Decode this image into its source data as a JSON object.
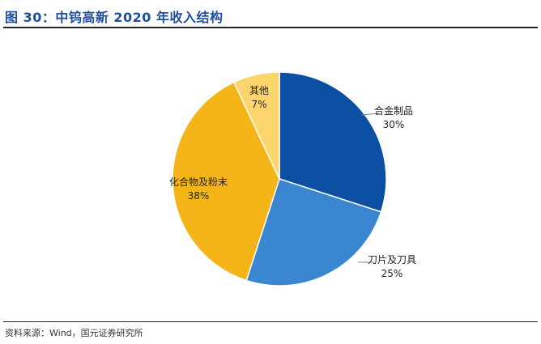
{
  "header": {
    "title": "图 30：中钨高新 2020 年收入结构"
  },
  "footer": {
    "source": "资料来源：Wind，国元证券研究所"
  },
  "chart_data": {
    "type": "pie",
    "title": "图 30：中钨高新 2020 年收入结构",
    "slices": [
      {
        "name": "合金制品",
        "value": 30,
        "label": "30%",
        "color": "#0b4fa3"
      },
      {
        "name": "刀片及刀具",
        "value": 25,
        "label": "25%",
        "color": "#3a86d1"
      },
      {
        "name": "化合物及粉末",
        "value": 38,
        "label": "38%",
        "color": "#f5b418"
      },
      {
        "name": "其他",
        "value": 7,
        "label": "7%",
        "color": "#fcd66c"
      }
    ]
  }
}
